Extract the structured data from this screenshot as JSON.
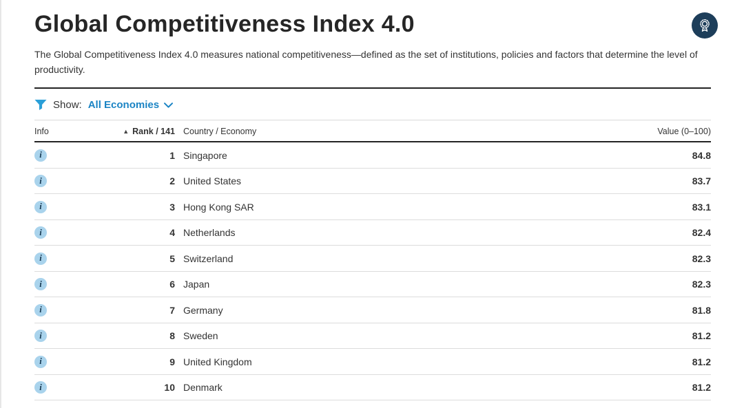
{
  "header": {
    "title": "Global Competitiveness Index 4.0",
    "description": "The Global Competitiveness Index 4.0 measures national competitiveness—defined as the set of institutions, policies and factors that determine the level of productivity.",
    "badge_icon": "medal-rosette-icon"
  },
  "filter": {
    "icon": "funnel-filter-icon",
    "label": "Show:",
    "value": "All Economies"
  },
  "table": {
    "columns": {
      "info": "Info",
      "rank": "Rank / 141",
      "country": "Country / Economy",
      "value": "Value (0–100)"
    },
    "sort": {
      "column": "rank",
      "direction": "ascending"
    },
    "rows": [
      {
        "rank": "1",
        "country": "Singapore",
        "value": "84.8"
      },
      {
        "rank": "2",
        "country": "United States",
        "value": "83.7"
      },
      {
        "rank": "3",
        "country": "Hong Kong SAR",
        "value": "83.1"
      },
      {
        "rank": "4",
        "country": "Netherlands",
        "value": "82.4"
      },
      {
        "rank": "5",
        "country": "Switzerland",
        "value": "82.3"
      },
      {
        "rank": "6",
        "country": "Japan",
        "value": "82.3"
      },
      {
        "rank": "7",
        "country": "Germany",
        "value": "81.8"
      },
      {
        "rank": "8",
        "country": "Sweden",
        "value": "81.2"
      },
      {
        "rank": "9",
        "country": "United Kingdom",
        "value": "81.2"
      },
      {
        "rank": "10",
        "country": "Denmark",
        "value": "81.2"
      }
    ],
    "info_icon_glyph": "i"
  },
  "colors": {
    "accent_blue": "#1b84c4",
    "funnel_blue": "#2a9fd8",
    "badge_navy": "#1d3e5a",
    "info_circle": "#a9d3ec",
    "rule_dark": "#222222",
    "rule_light": "#dcdcdc"
  }
}
